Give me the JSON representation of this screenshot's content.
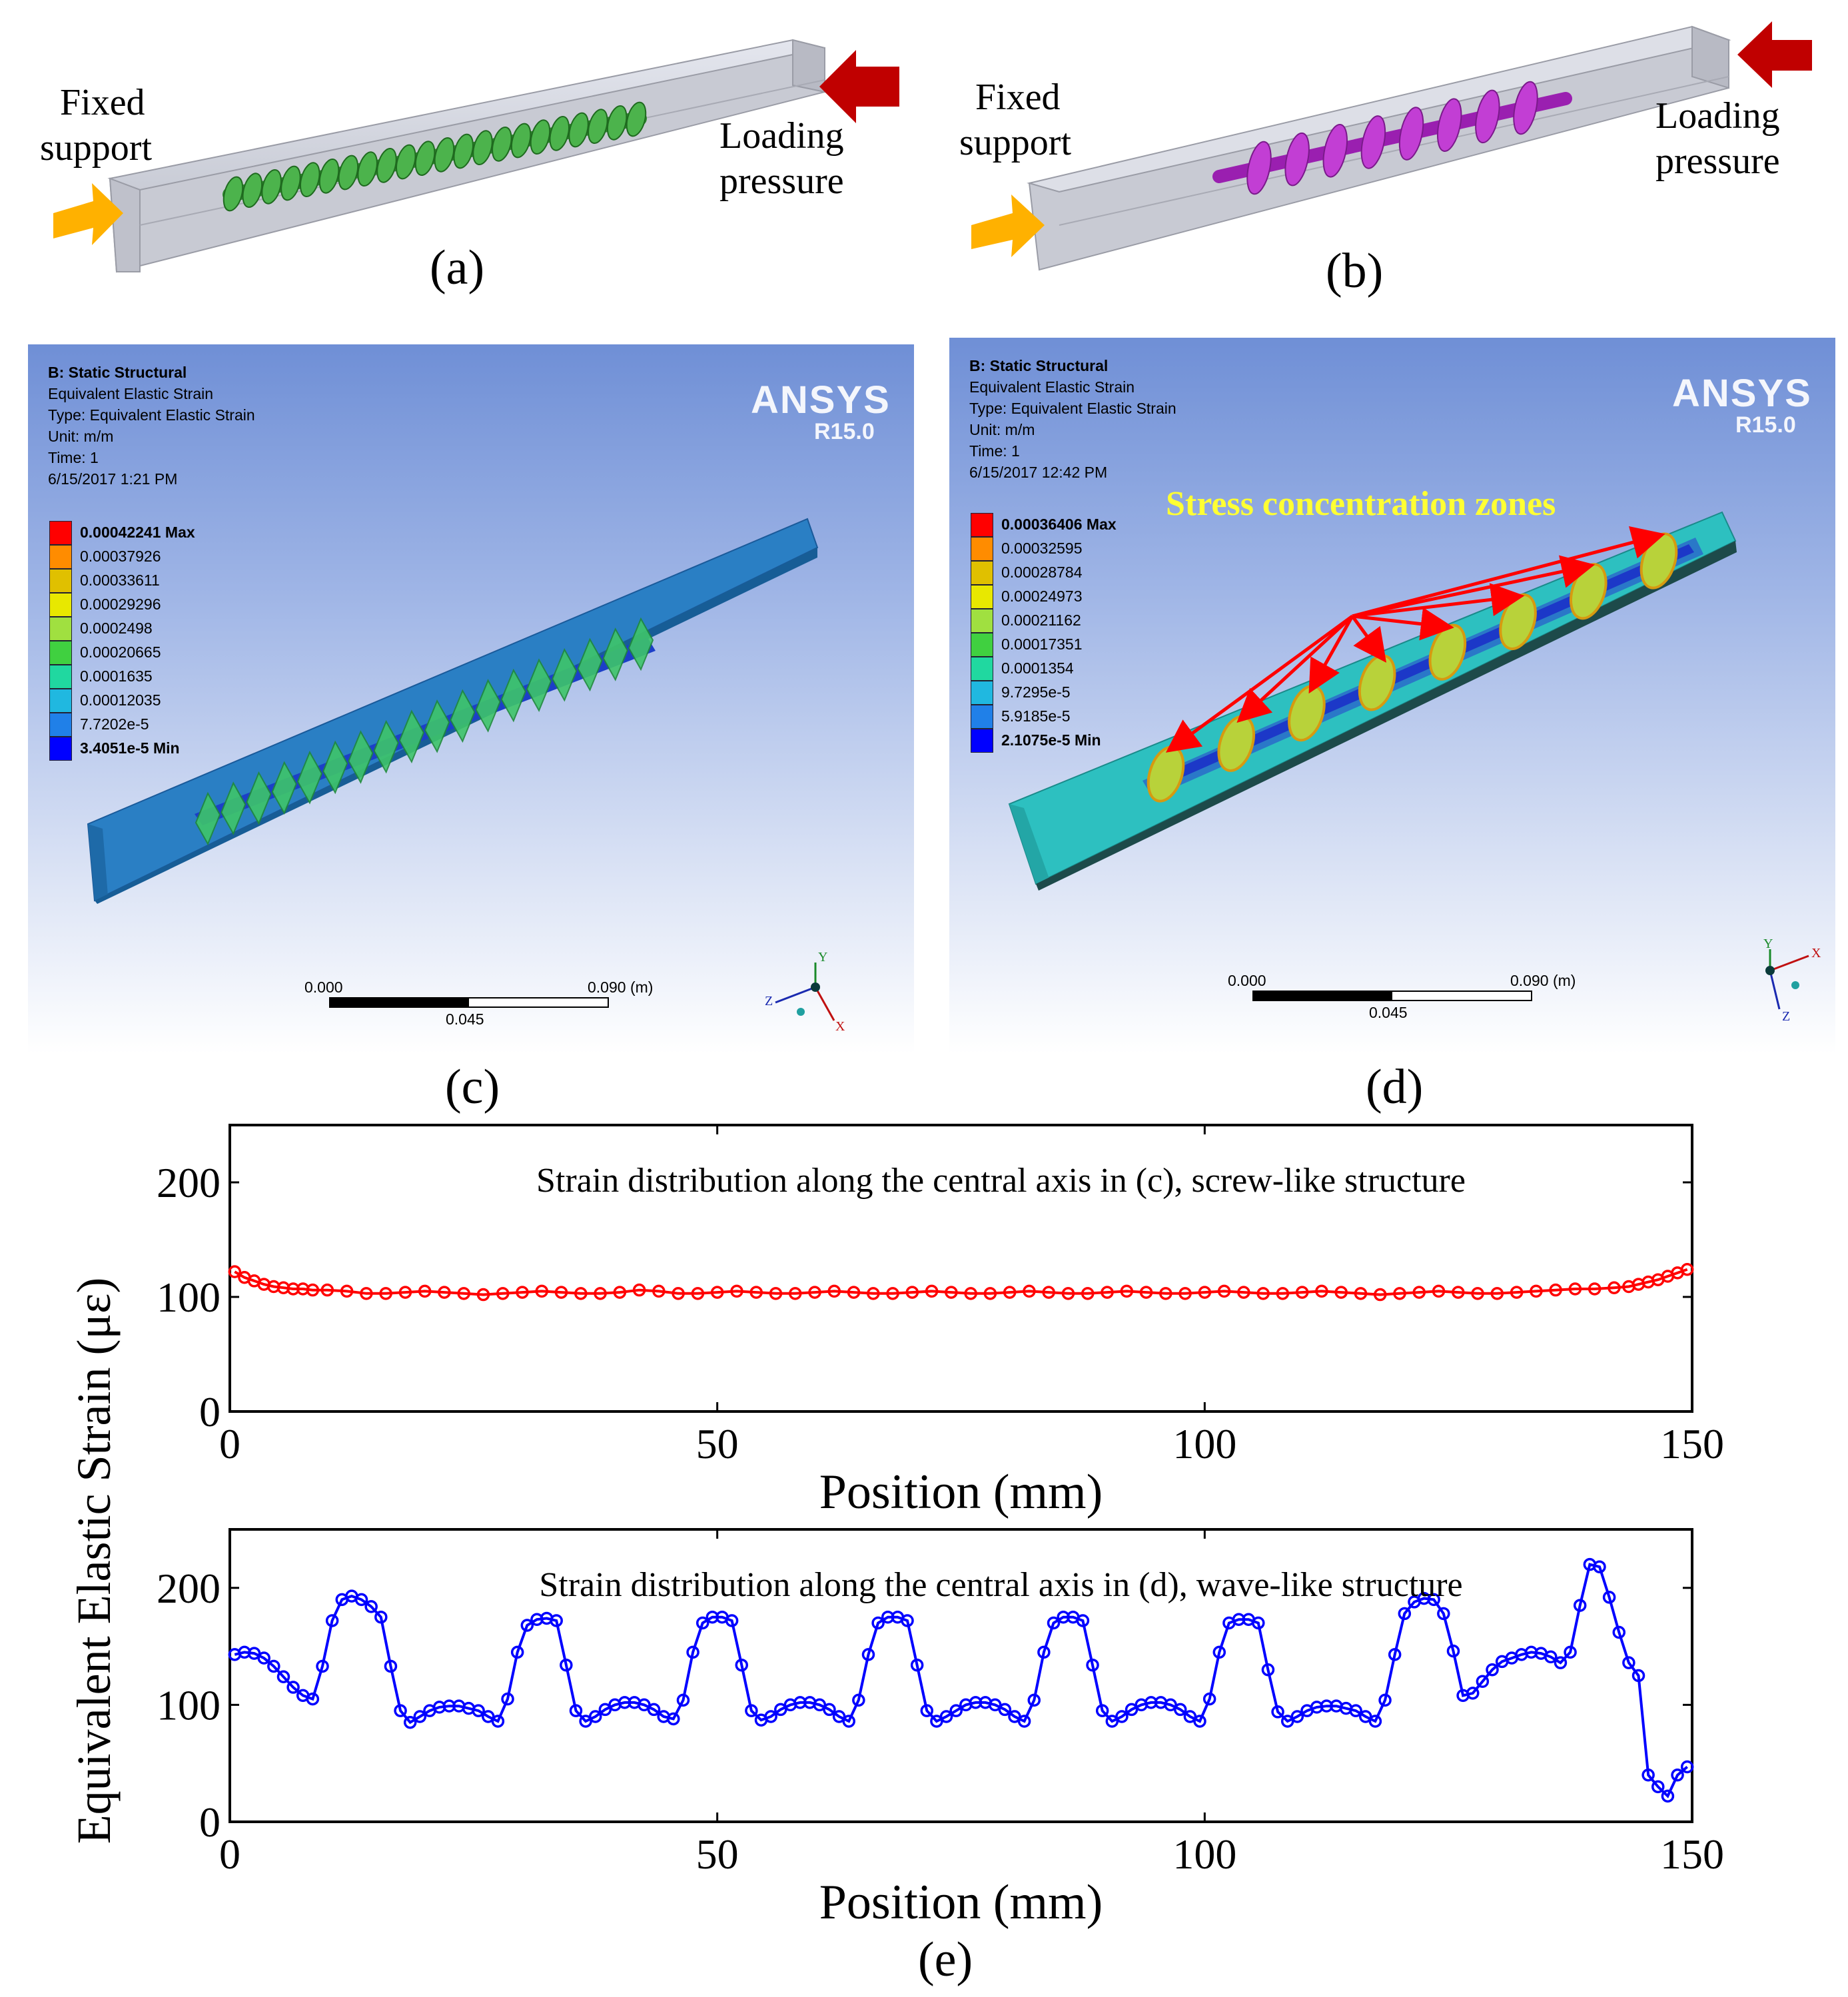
{
  "panel_a": {
    "caption": "(a)",
    "left_label": [
      "Fixed",
      "support"
    ],
    "right_label": [
      "Loading",
      "pressure"
    ],
    "screw_color": "#3a9a3a"
  },
  "panel_b": {
    "caption": "(b)",
    "left_label": [
      "Fixed",
      "support"
    ],
    "right_label": [
      "Loading",
      "pressure"
    ],
    "wave_color": "#b030c0"
  },
  "panel_c": {
    "caption": "(c)",
    "info": [
      "B: Static Structural",
      "Equivalent Elastic Strain",
      "Type: Equivalent Elastic Strain",
      "Unit: m/m",
      "Time: 1",
      "6/15/2017 1:21 PM"
    ],
    "legend": [
      "0.00042241 Max",
      "0.00037926",
      "0.00033611",
      "0.00029296",
      "0.0002498",
      "0.00020665",
      "0.0001635",
      "0.00012035",
      "7.7202e-5",
      "3.4051e-5 Min"
    ],
    "logo": "ANSYS",
    "version": "R15.0",
    "scale": {
      "left": "0.000",
      "right": "0.090 (m)",
      "mid": "0.045"
    },
    "axes": {
      "y": "Y",
      "z": "Z",
      "x": "X"
    }
  },
  "panel_d": {
    "caption": "(d)",
    "info": [
      "B: Static Structural",
      "Equivalent Elastic Strain",
      "Type: Equivalent Elastic Strain",
      "Unit: m/m",
      "Time: 1",
      "6/15/2017 12:42 PM"
    ],
    "legend": [
      "0.00036406 Max",
      "0.00032595",
      "0.00028784",
      "0.00024973",
      "0.00021162",
      "0.00017351",
      "0.0001354",
      "9.7295e-5",
      "5.9185e-5",
      "2.1075e-5 Min"
    ],
    "logo": "ANSYS",
    "version": "R15.0",
    "annotation": "Stress concentration zones",
    "scale": {
      "left": "0.000",
      "right": "0.090 (m)",
      "mid": "0.045"
    },
    "axes": {
      "y": "Y",
      "x": "X",
      "z": "Z"
    }
  },
  "legend_colors": [
    "#ff0000",
    "#ff8c00",
    "#e0c000",
    "#e8e800",
    "#a0e040",
    "#40d040",
    "#20d8a0",
    "#20b8e0",
    "#2080e8",
    "#0000ff"
  ],
  "panel_e": {
    "caption": "(e)",
    "ylabel": "Equivalent Elastic Strain (με)"
  },
  "chart_data": [
    {
      "type": "line",
      "title": "Strain distribution along the central axis in (c), screw-like structure",
      "xlabel": "Position (mm)",
      "ylabel": "Equivalent Elastic Strain (με)",
      "xlim": [
        0,
        150
      ],
      "ylim": [
        0,
        250
      ],
      "xticks": [
        0,
        50,
        100,
        150
      ],
      "yticks": [
        0,
        100,
        200
      ],
      "color": "#ff0000",
      "x": [
        0.5,
        1.5,
        2.5,
        3.5,
        4.5,
        5.5,
        6.5,
        7.5,
        8.5,
        10,
        12,
        14,
        16,
        18,
        20,
        22,
        24,
        26,
        28,
        30,
        32,
        34,
        36,
        38,
        40,
        42,
        44,
        46,
        48,
        50,
        52,
        54,
        56,
        58,
        60,
        62,
        64,
        66,
        68,
        70,
        72,
        74,
        76,
        78,
        80,
        82,
        84,
        86,
        88,
        90,
        92,
        94,
        96,
        98,
        100,
        102,
        104,
        106,
        108,
        110,
        112,
        114,
        116,
        118,
        120,
        122,
        124,
        126,
        128,
        130,
        132,
        134,
        136,
        138,
        140,
        142,
        143.5,
        144.5,
        145.5,
        146.5,
        147.5,
        148.5,
        149.5
      ],
      "y": [
        122,
        117,
        114,
        111,
        109,
        108,
        107,
        107,
        106,
        106,
        105,
        103,
        103,
        104,
        105,
        104,
        103,
        102,
        103,
        104,
        105,
        104,
        103,
        103,
        104,
        106,
        105,
        103,
        103,
        104,
        105,
        104,
        103,
        103,
        104,
        105,
        104,
        103,
        103,
        104,
        105,
        104,
        103,
        103,
        104,
        105,
        104,
        103,
        103,
        104,
        105,
        104,
        103,
        103,
        104,
        105,
        104,
        103,
        103,
        104,
        105,
        104,
        103,
        102,
        103,
        104,
        105,
        104,
        103,
        103,
        104,
        105,
        106,
        107,
        107,
        108,
        109,
        111,
        113,
        115,
        118,
        121,
        124
      ]
    },
    {
      "type": "line",
      "title": "Strain distribution along the central axis in (d), wave-like structure",
      "xlabel": "Position (mm)",
      "ylabel": "Equivalent Elastic Strain (με)",
      "xlim": [
        0,
        150
      ],
      "ylim": [
        0,
        250
      ],
      "xticks": [
        0,
        50,
        100,
        150
      ],
      "yticks": [
        0,
        100,
        200
      ],
      "color": "#0000ff",
      "x": [
        0.5,
        1.5,
        2.5,
        3.5,
        4.5,
        5.5,
        6.5,
        7.5,
        8.5,
        9.5,
        10.5,
        11.5,
        12.5,
        13.5,
        14.5,
        15.5,
        16.5,
        17.5,
        18.5,
        19.5,
        20.5,
        21.5,
        22.5,
        23.5,
        24.5,
        25.5,
        26.5,
        27.5,
        28.5,
        29.5,
        30.5,
        31.5,
        32.5,
        33.5,
        34.5,
        35.5,
        36.5,
        37.5,
        38.5,
        39.5,
        40.5,
        41.5,
        42.5,
        43.5,
        44.5,
        45.5,
        46.5,
        47.5,
        48.5,
        49.5,
        50.5,
        51.5,
        52.5,
        53.5,
        54.5,
        55.5,
        56.5,
        57.5,
        58.5,
        59.5,
        60.5,
        61.5,
        62.5,
        63.5,
        64.5,
        65.5,
        66.5,
        67.5,
        68.5,
        69.5,
        70.5,
        71.5,
        72.5,
        73.5,
        74.5,
        75.5,
        76.5,
        77.5,
        78.5,
        79.5,
        80.5,
        81.5,
        82.5,
        83.5,
        84.5,
        85.5,
        86.5,
        87.5,
        88.5,
        89.5,
        90.5,
        91.5,
        92.5,
        93.5,
        94.5,
        95.5,
        96.5,
        97.5,
        98.5,
        99.5,
        100.5,
        101.5,
        102.5,
        103.5,
        104.5,
        105.5,
        106.5,
        107.5,
        108.5,
        109.5,
        110.5,
        111.5,
        112.5,
        113.5,
        114.5,
        115.5,
        116.5,
        117.5,
        118.5,
        119.5,
        120.5,
        121.5,
        122.5,
        123.5,
        124.5,
        125.5,
        126.5,
        127.5,
        128.5,
        129.5,
        130.5,
        131.5,
        132.5,
        133.5,
        134.5,
        135.5,
        136.5,
        137.5,
        138.5,
        139.5,
        140.5,
        141.5,
        142.5,
        143.5,
        144.5,
        145.5,
        146.5,
        147.5,
        148.5,
        149.5
      ],
      "y": [
        143,
        145,
        144,
        140,
        133,
        124,
        115,
        108,
        105,
        133,
        172,
        190,
        193,
        190,
        184,
        175,
        133,
        95,
        85,
        90,
        95,
        98,
        99,
        99,
        97,
        95,
        90,
        86,
        105,
        145,
        168,
        173,
        174,
        172,
        134,
        95,
        86,
        90,
        96,
        100,
        102,
        102,
        100,
        96,
        90,
        88,
        104,
        145,
        170,
        175,
        175,
        172,
        134,
        95,
        87,
        90,
        96,
        100,
        102,
        102,
        100,
        96,
        90,
        86,
        104,
        143,
        170,
        175,
        175,
        172,
        134,
        95,
        86,
        90,
        95,
        100,
        102,
        102,
        100,
        96,
        90,
        86,
        104,
        145,
        170,
        175,
        175,
        172,
        134,
        95,
        86,
        90,
        96,
        100,
        102,
        102,
        100,
        96,
        90,
        86,
        105,
        145,
        170,
        173,
        173,
        170,
        130,
        94,
        86,
        90,
        95,
        98,
        99,
        99,
        97,
        95,
        90,
        86,
        104,
        143,
        178,
        188,
        191,
        190,
        178,
        146,
        108,
        110,
        120,
        130,
        137,
        140,
        143,
        145,
        144,
        141,
        136,
        145,
        185,
        220,
        218,
        192,
        162,
        136,
        125,
        40,
        30,
        22,
        40,
        47
      ]
    }
  ]
}
